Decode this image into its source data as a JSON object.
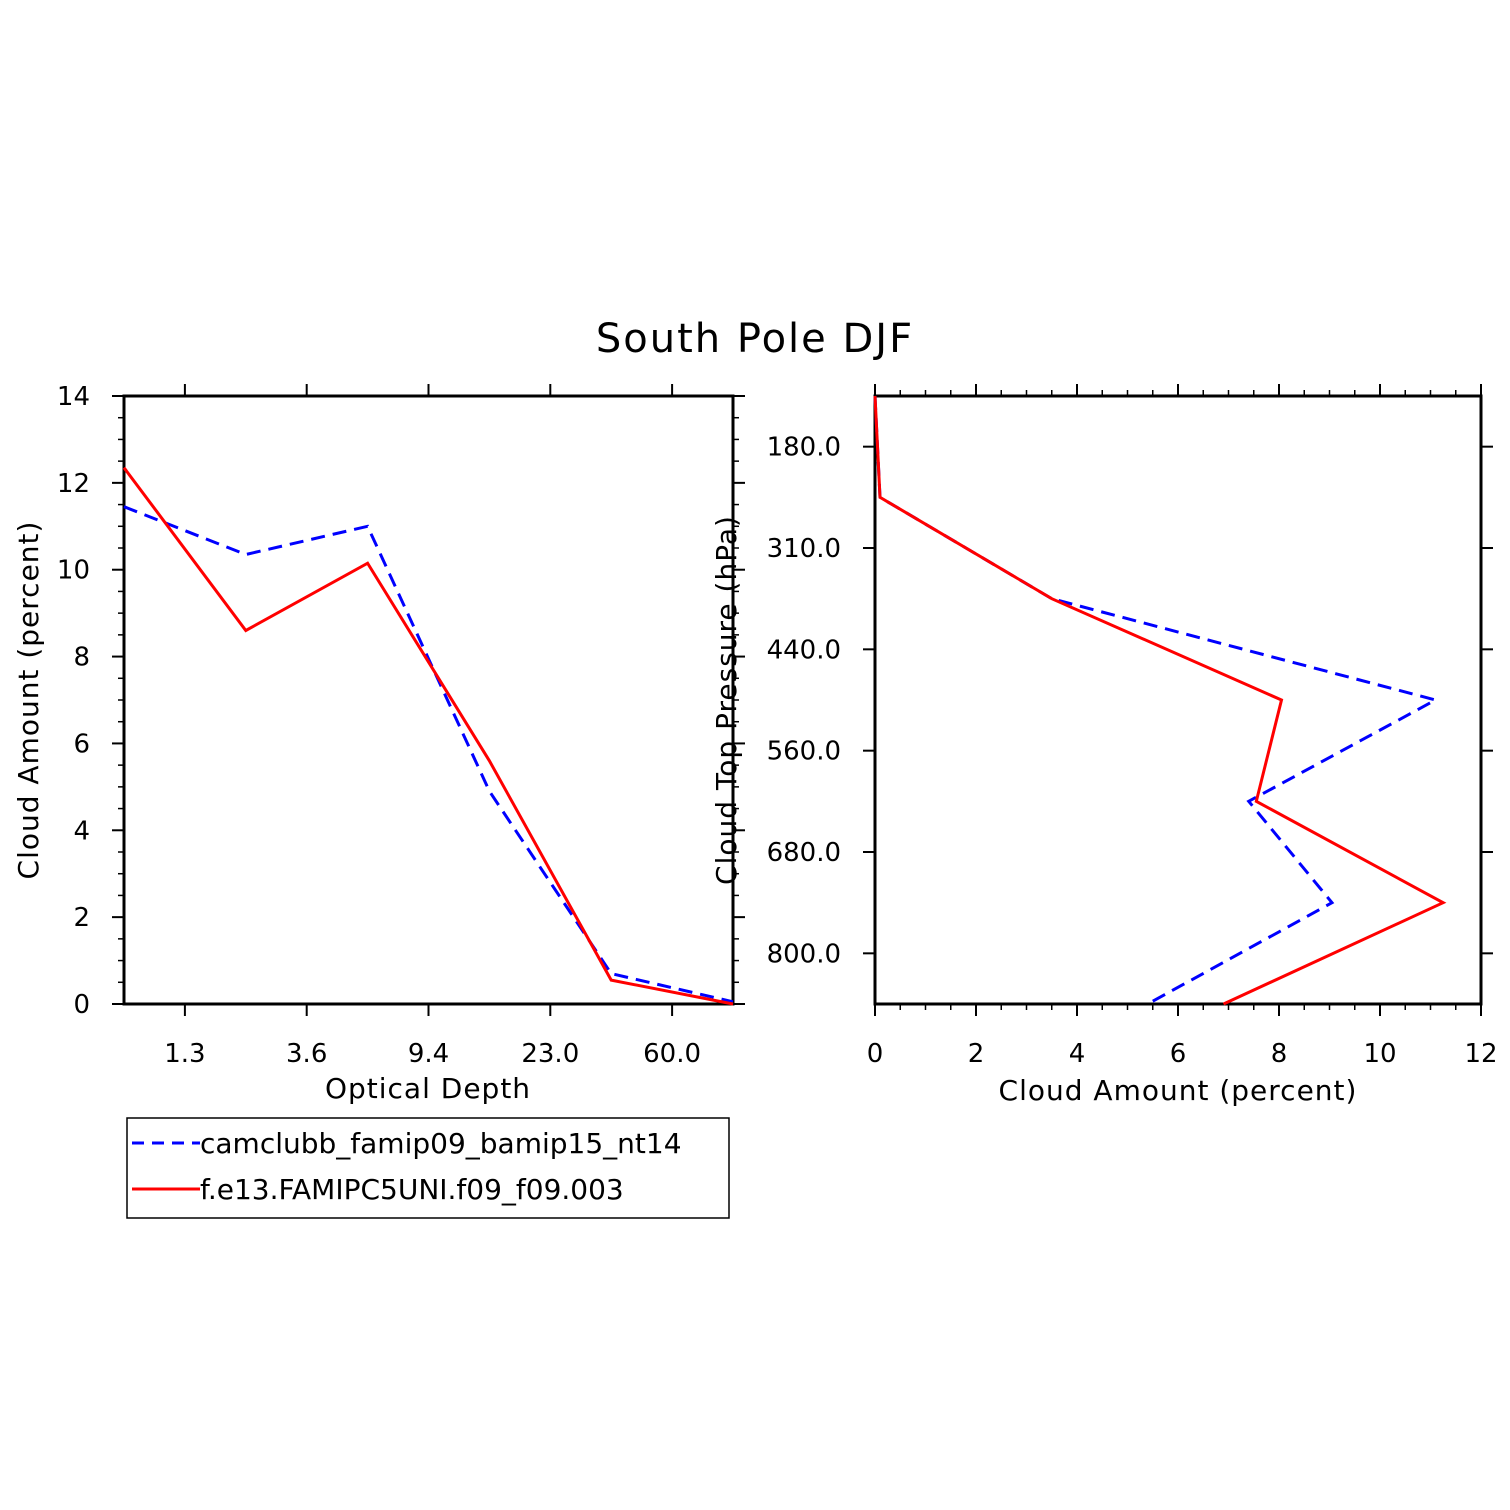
{
  "title": "South Pole DJF",
  "colors": {
    "series_a": "#0000ff",
    "series_b": "#ff0000"
  },
  "legend": {
    "position": "below-left-panel",
    "entries": [
      {
        "label": "camclubb_famip09_bamip15_nt14",
        "color": "#0000ff",
        "style": "dashed"
      },
      {
        "label": "f.e13.FAMIPC5UNI.f09_f09.003",
        "color": "#ff0000",
        "style": "solid"
      }
    ]
  },
  "chart_data": [
    {
      "type": "line",
      "xlabel": "Optical Depth",
      "ylabel": "Cloud Amount (percent)",
      "xlim": [
        0,
        10
      ],
      "ylim": [
        0,
        14
      ],
      "x_ticks": [
        {
          "pos": 1,
          "label": "1.3"
        },
        {
          "pos": 3,
          "label": "3.6"
        },
        {
          "pos": 5,
          "label": "9.4"
        },
        {
          "pos": 7,
          "label": "23.0"
        },
        {
          "pos": 9,
          "label": "60.0"
        }
      ],
      "y_ticks": [
        "0",
        "2",
        "4",
        "6",
        "8",
        "10",
        "12",
        "14"
      ],
      "x": [
        0,
        2,
        4,
        6,
        8,
        10
      ],
      "series": [
        {
          "name": "camclubb_famip09_bamip15_nt14",
          "values": [
            11.45,
            10.35,
            11.0,
            4.9,
            0.7,
            0.05
          ]
        },
        {
          "name": "f.e13.FAMIPC5UNI.f09_f09.003",
          "values": [
            12.35,
            8.6,
            10.15,
            5.6,
            0.55,
            0.0
          ]
        }
      ]
    },
    {
      "type": "line",
      "xlabel": "Cloud Amount (percent)",
      "ylabel": "Cloud Top Pressure (hPa)",
      "xlim": [
        0,
        12
      ],
      "ylim": [
        120,
        840
      ],
      "y_inverted": true,
      "x_ticks": [
        "0",
        "2",
        "4",
        "6",
        "8",
        "10",
        "12"
      ],
      "y_ticks": [
        {
          "pos": 180,
          "label": "180.0"
        },
        {
          "pos": 300,
          "label": "310.0"
        },
        {
          "pos": 420,
          "label": "440.0"
        },
        {
          "pos": 540,
          "label": "560.0"
        },
        {
          "pos": 660,
          "label": "680.0"
        },
        {
          "pos": 780,
          "label": "800.0"
        }
      ],
      "y": [
        120,
        240,
        360,
        480,
        600,
        720,
        840
      ],
      "series": [
        {
          "name": "camclubb_famip09_bamip15_nt14",
          "values": [
            0.0,
            0.1,
            3.5,
            11.1,
            7.4,
            9.05,
            5.4
          ]
        },
        {
          "name": "f.e13.FAMIPC5UNI.f09_f09.003",
          "values": [
            0.0,
            0.1,
            3.5,
            8.05,
            7.55,
            11.25,
            6.9
          ]
        }
      ]
    }
  ]
}
